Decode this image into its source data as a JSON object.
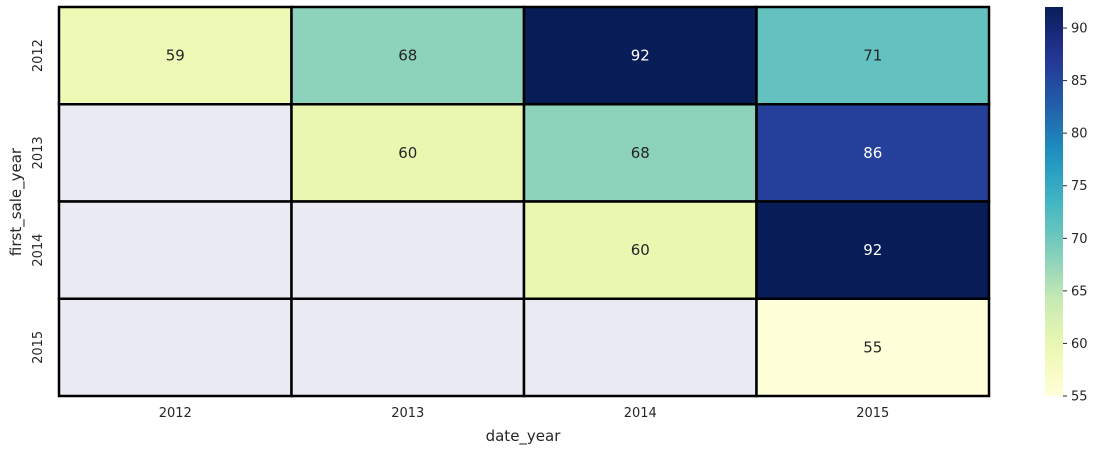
{
  "chart_data": {
    "type": "heatmap",
    "title": "",
    "xlabel": "date_year",
    "ylabel": "first_sale_year",
    "x_categories": [
      "2012",
      "2013",
      "2014",
      "2015"
    ],
    "y_categories": [
      "2012",
      "2013",
      "2014",
      "2015"
    ],
    "values": [
      [
        59,
        68,
        92,
        71
      ],
      [
        null,
        60,
        68,
        86
      ],
      [
        null,
        null,
        60,
        92
      ],
      [
        null,
        null,
        null,
        55
      ]
    ],
    "colormap": "YlGnBu",
    "vmin": 55,
    "vmax": 92,
    "colorbar_ticks": [
      "55",
      "60",
      "65",
      "70",
      "75",
      "80",
      "85",
      "90"
    ],
    "missing_color": "#eaeaf2",
    "cell_border_color": "#000000",
    "annotated": true,
    "grid": false,
    "legend": "colorbar-right"
  }
}
